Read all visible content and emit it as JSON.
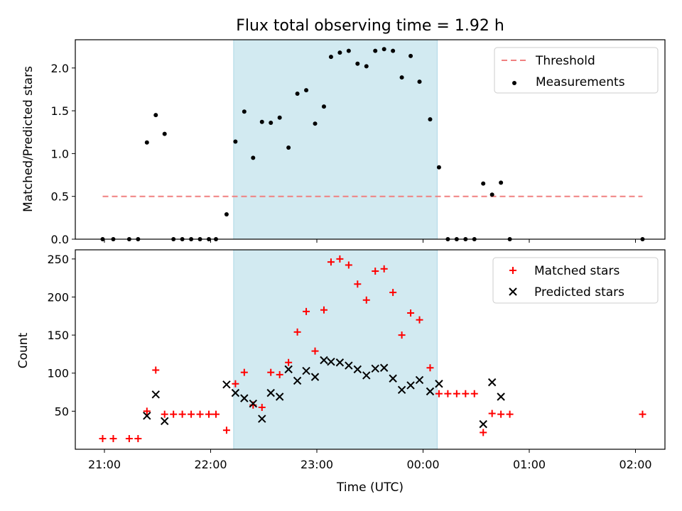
{
  "chart_data": [
    {
      "type": "scatter",
      "title": "Flux total observing time = 1.92 h",
      "xlabel": "",
      "ylabel": "Matched/Predicted stars",
      "ylim": [
        0,
        2.33
      ],
      "yticks": [
        "0.0",
        "0.5",
        "1.0",
        "1.5",
        "2.0"
      ],
      "highlight_window": {
        "start": "22:13",
        "end": "00:08",
        "color": "#add8e6"
      },
      "threshold": {
        "name": "Threshold",
        "value": 0.5,
        "x_start": "20:59",
        "x_end": "02:04",
        "color": "#f08080",
        "style": "dashed"
      },
      "series": [
        {
          "name": "Measurements",
          "color": "#000000",
          "marker": "dot",
          "points": [
            [
              "20:59",
              0.0
            ],
            [
              "21:05",
              0.0
            ],
            [
              "21:14",
              0.0
            ],
            [
              "21:19",
              0.0
            ],
            [
              "21:24",
              1.13
            ],
            [
              "21:29",
              1.45
            ],
            [
              "21:34",
              1.23
            ],
            [
              "21:39",
              0.0
            ],
            [
              "21:44",
              0.0
            ],
            [
              "21:49",
              0.0
            ],
            [
              "21:54",
              0.0
            ],
            [
              "21:59",
              0.0
            ],
            [
              "22:03",
              0.0
            ],
            [
              "22:09",
              0.29
            ],
            [
              "22:14",
              1.14
            ],
            [
              "22:19",
              1.49
            ],
            [
              "22:24",
              0.95
            ],
            [
              "22:29",
              1.37
            ],
            [
              "22:34",
              1.36
            ],
            [
              "22:39",
              1.42
            ],
            [
              "22:44",
              1.07
            ],
            [
              "22:49",
              1.7
            ],
            [
              "22:54",
              1.74
            ],
            [
              "22:59",
              1.35
            ],
            [
              "23:04",
              1.55
            ],
            [
              "23:08",
              2.13
            ],
            [
              "23:13",
              2.18
            ],
            [
              "23:18",
              2.2
            ],
            [
              "23:23",
              2.05
            ],
            [
              "23:28",
              2.02
            ],
            [
              "23:33",
              2.2
            ],
            [
              "23:38",
              2.22
            ],
            [
              "23:43",
              2.2
            ],
            [
              "23:48",
              1.89
            ],
            [
              "23:53",
              2.14
            ],
            [
              "23:58",
              1.84
            ],
            [
              "00:04",
              1.4
            ],
            [
              "00:09",
              0.84
            ],
            [
              "00:14",
              0.0
            ],
            [
              "00:19",
              0.0
            ],
            [
              "00:24",
              0.0
            ],
            [
              "00:29",
              0.0
            ],
            [
              "00:34",
              0.65
            ],
            [
              "00:39",
              0.52
            ],
            [
              "00:44",
              0.66
            ],
            [
              "00:49",
              0.0
            ],
            [
              "02:04",
              0.0
            ]
          ]
        }
      ],
      "legend": {
        "position": "top-right",
        "items": [
          "Threshold",
          "Measurements"
        ]
      }
    },
    {
      "type": "scatter",
      "title": "",
      "xlabel": "Time (UTC)",
      "ylabel": "Count",
      "ylim": [
        0,
        262
      ],
      "yticks": [
        "50",
        "100",
        "150",
        "200",
        "250"
      ],
      "xticks": [
        "21:00",
        "22:00",
        "23:00",
        "00:00",
        "01:00",
        "02:00"
      ],
      "highlight_window": {
        "start": "22:13",
        "end": "00:08",
        "color": "#add8e6"
      },
      "series": [
        {
          "name": "Matched stars",
          "color": "#ff0000",
          "marker": "plus",
          "points": [
            [
              "20:59",
              14
            ],
            [
              "21:05",
              14
            ],
            [
              "21:14",
              14
            ],
            [
              "21:19",
              14
            ],
            [
              "21:24",
              50
            ],
            [
              "21:29",
              104
            ],
            [
              "21:34",
              46
            ],
            [
              "21:39",
              46
            ],
            [
              "21:44",
              46
            ],
            [
              "21:49",
              46
            ],
            [
              "21:54",
              46
            ],
            [
              "21:59",
              46
            ],
            [
              "22:03",
              46
            ],
            [
              "22:09",
              25
            ],
            [
              "22:14",
              86
            ],
            [
              "22:19",
              101
            ],
            [
              "22:24",
              58
            ],
            [
              "22:29",
              55
            ],
            [
              "22:34",
              101
            ],
            [
              "22:39",
              98
            ],
            [
              "22:44",
              114
            ],
            [
              "22:49",
              154
            ],
            [
              "22:54",
              181
            ],
            [
              "22:59",
              129
            ],
            [
              "23:04",
              183
            ],
            [
              "23:08",
              246
            ],
            [
              "23:13",
              250
            ],
            [
              "23:18",
              242
            ],
            [
              "23:23",
              217
            ],
            [
              "23:28",
              196
            ],
            [
              "23:33",
              234
            ],
            [
              "23:38",
              237
            ],
            [
              "23:43",
              206
            ],
            [
              "23:48",
              150
            ],
            [
              "23:53",
              179
            ],
            [
              "23:58",
              170
            ],
            [
              "00:04",
              107
            ],
            [
              "00:09",
              73
            ],
            [
              "00:14",
              73
            ],
            [
              "00:19",
              73
            ],
            [
              "00:24",
              73
            ],
            [
              "00:29",
              73
            ],
            [
              "00:34",
              22
            ],
            [
              "00:39",
              47
            ],
            [
              "00:44",
              46
            ],
            [
              "00:49",
              46
            ],
            [
              "02:04",
              46
            ]
          ]
        },
        {
          "name": "Predicted stars",
          "color": "#000000",
          "marker": "x",
          "points": [
            [
              "21:24",
              44
            ],
            [
              "21:29",
              72
            ],
            [
              "21:34",
              37
            ],
            [
              "22:09",
              85
            ],
            [
              "22:14",
              74
            ],
            [
              "22:19",
              67
            ],
            [
              "22:24",
              60
            ],
            [
              "22:29",
              40
            ],
            [
              "22:34",
              74
            ],
            [
              "22:39",
              69
            ],
            [
              "22:44",
              105
            ],
            [
              "22:49",
              90
            ],
            [
              "22:54",
              103
            ],
            [
              "22:59",
              95
            ],
            [
              "23:04",
              117
            ],
            [
              "23:08",
              115
            ],
            [
              "23:13",
              114
            ],
            [
              "23:18",
              110
            ],
            [
              "23:23",
              105
            ],
            [
              "23:28",
              97
            ],
            [
              "23:33",
              106
            ],
            [
              "23:38",
              107
            ],
            [
              "23:43",
              93
            ],
            [
              "23:48",
              78
            ],
            [
              "23:53",
              84
            ],
            [
              "23:58",
              91
            ],
            [
              "00:04",
              76
            ],
            [
              "00:09",
              86
            ],
            [
              "00:34",
              33
            ],
            [
              "00:39",
              88
            ],
            [
              "00:44",
              69
            ]
          ]
        }
      ],
      "legend": {
        "position": "top-right",
        "items": [
          "Matched stars",
          "Predicted stars"
        ]
      }
    }
  ]
}
